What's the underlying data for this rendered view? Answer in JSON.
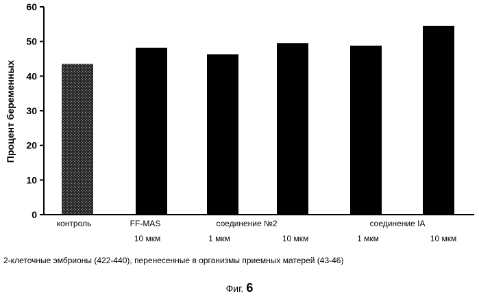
{
  "chart_data": {
    "type": "bar",
    "title": "",
    "xlabel": "",
    "ylabel": "Процент беременных",
    "ylim": [
      0,
      60
    ],
    "yticks": [
      0,
      10,
      20,
      30,
      40,
      50,
      60
    ],
    "grid": false,
    "bars": [
      {
        "value": 43.5,
        "style": "stippled"
      },
      {
        "value": 48.2,
        "style": "solid"
      },
      {
        "value": 46.3,
        "style": "solid"
      },
      {
        "value": 49.5,
        "style": "solid"
      },
      {
        "value": 48.8,
        "style": "solid"
      },
      {
        "value": 54.5,
        "style": "solid"
      }
    ],
    "category_labels": [
      "контроль",
      "FF-MAS",
      "соединение №2",
      "соединение IA"
    ],
    "dose_labels": [
      "10 мкм",
      "1 мкм",
      "10 мкм",
      "1 мкм",
      "10 мкм"
    ],
    "colors": {
      "bar": "#000000",
      "control": "#444444"
    }
  },
  "caption": "2-клеточные эмбрионы (422-440), перенесенные в организмы приемных матерей (43-46)",
  "figure": {
    "prefix": "Фиг.",
    "number": "6"
  }
}
